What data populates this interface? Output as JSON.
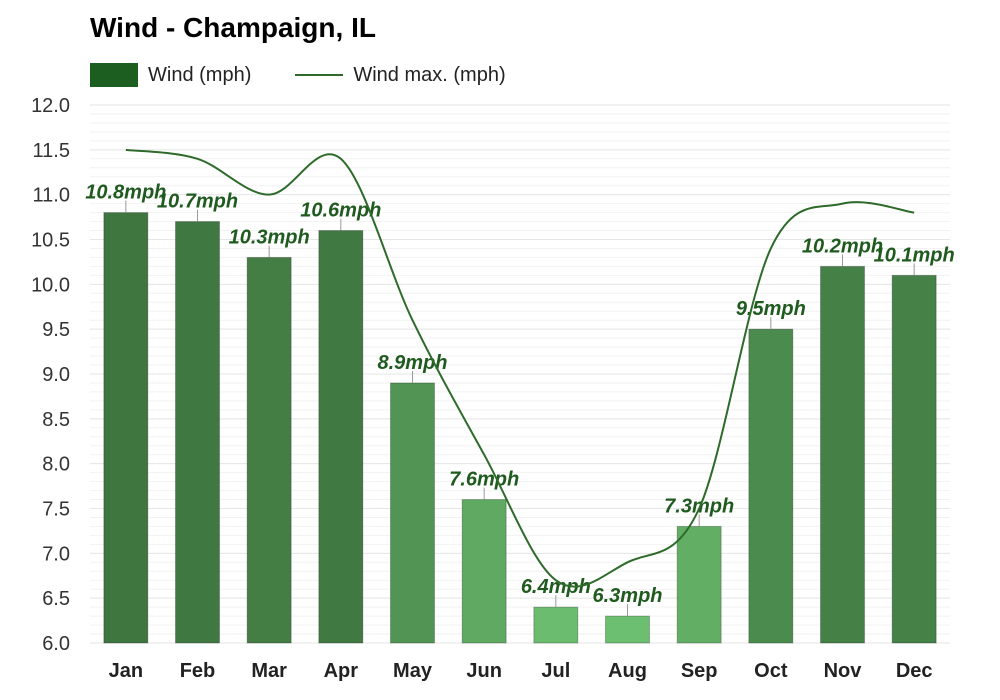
{
  "chart_data": {
    "type": "bar",
    "title": "Wind - Champaign, IL",
    "categories": [
      "Jan",
      "Feb",
      "Mar",
      "Apr",
      "May",
      "Jun",
      "Jul",
      "Aug",
      "Sep",
      "Oct",
      "Nov",
      "Dec"
    ],
    "series": [
      {
        "name": "Wind (mph)",
        "type": "bar",
        "values": [
          10.8,
          10.7,
          10.3,
          10.6,
          8.9,
          7.6,
          6.4,
          6.3,
          7.3,
          9.5,
          10.2,
          10.1
        ],
        "labels": [
          "10.8mph",
          "10.7mph",
          "10.3mph",
          "10.6mph",
          "8.9mph",
          "7.6mph",
          "6.4mph",
          "6.3mph",
          "7.3mph",
          "9.5mph",
          "10.2mph",
          "10.1mph"
        ]
      },
      {
        "name": "Wind max. (mph)",
        "type": "line",
        "values": [
          11.5,
          11.4,
          11.0,
          11.4,
          9.6,
          8.1,
          6.7,
          6.9,
          7.5,
          10.4,
          10.9,
          10.8
        ]
      }
    ],
    "yticks": [
      "12.0",
      "11.5",
      "11.0",
      "10.5",
      "10.0",
      "9.5",
      "9.0",
      "8.5",
      "8.0",
      "7.5",
      "7.0",
      "6.5",
      "6.0"
    ],
    "ylim": [
      6.0,
      12.0
    ],
    "xlabel": "",
    "ylabel": "",
    "grid": true,
    "legend_position": "top-left"
  },
  "colors": {
    "legend_bar": "#1b5e20",
    "line": "#2e6b2a",
    "label": "#1f5a1f",
    "grid": "#e6e6e6"
  }
}
